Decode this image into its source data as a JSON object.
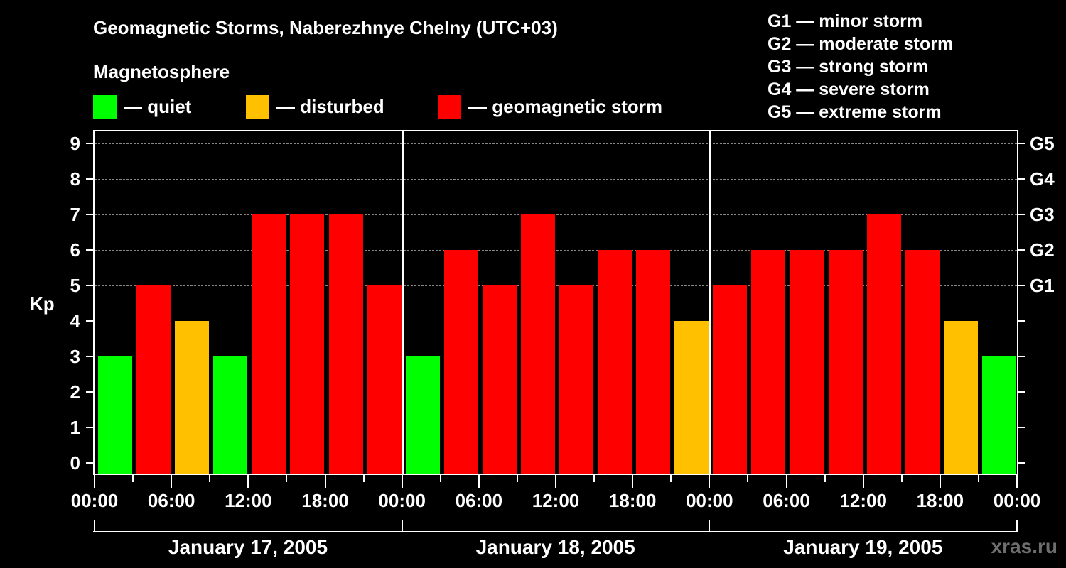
{
  "title": "Geomagnetic Storms, Naberezhnye Chelny (UTC+03)",
  "subtitle": "Magnetosphere",
  "legend": [
    {
      "label": "— quiet",
      "color": "#00ff00"
    },
    {
      "label": "— disturbed",
      "color": "#ffc000"
    },
    {
      "label": "— geomagnetic storm",
      "color": "#ff0000"
    }
  ],
  "g_scale": [
    "G1 — minor storm",
    "G2 — moderate storm",
    "G3 — strong storm",
    "G4 — severe storm",
    "G5 — extreme storm"
  ],
  "watermark": "xras.ru",
  "chart_data": {
    "type": "bar",
    "title": "Geomagnetic Storms, Naberezhnye Chelny (UTC+03)",
    "ylabel": "Kp",
    "xlabel": "",
    "ylim": [
      0,
      9
    ],
    "yticks": [
      0,
      1,
      2,
      3,
      4,
      5,
      6,
      7,
      8,
      9
    ],
    "right_axis": {
      "labels": [
        "G1",
        "G2",
        "G3",
        "G4",
        "G5"
      ],
      "at_kp": [
        5,
        6,
        7,
        8,
        9
      ]
    },
    "grid": "dashed horizontal at Kp 5-9",
    "x_tick_labels": [
      "00:00",
      "06:00",
      "12:00",
      "18:00",
      "00:00",
      "06:00",
      "12:00",
      "18:00",
      "00:00",
      "06:00",
      "12:00",
      "18:00",
      "00:00"
    ],
    "days": [
      "January 17, 2005",
      "January 18, 2005",
      "January 19, 2005"
    ],
    "interval_hours": 3,
    "categories": [
      "Jan 17 00-03",
      "Jan 17 03-06",
      "Jan 17 06-09",
      "Jan 17 09-12",
      "Jan 17 12-15",
      "Jan 17 15-18",
      "Jan 17 18-21",
      "Jan 17 21-24",
      "Jan 18 00-03",
      "Jan 18 03-06",
      "Jan 18 06-09",
      "Jan 18 09-12",
      "Jan 18 12-15",
      "Jan 18 15-18",
      "Jan 18 18-21",
      "Jan 18 21-24",
      "Jan 19 00-03",
      "Jan 19 03-06",
      "Jan 19 06-09",
      "Jan 19 09-12",
      "Jan 19 12-15",
      "Jan 19 15-18",
      "Jan 19 18-21",
      "Jan 19 21-24"
    ],
    "values": [
      3,
      5,
      4,
      3,
      7,
      7,
      7,
      5,
      3,
      6,
      5,
      7,
      5,
      6,
      6,
      4,
      5,
      6,
      6,
      6,
      7,
      6,
      4,
      3
    ],
    "color_rule": {
      "quiet": "Kp <= 3 (#00ff00)",
      "disturbed": "Kp = 4 (#ffc000)",
      "storm": "Kp >= 5 (#ff0000)"
    }
  }
}
